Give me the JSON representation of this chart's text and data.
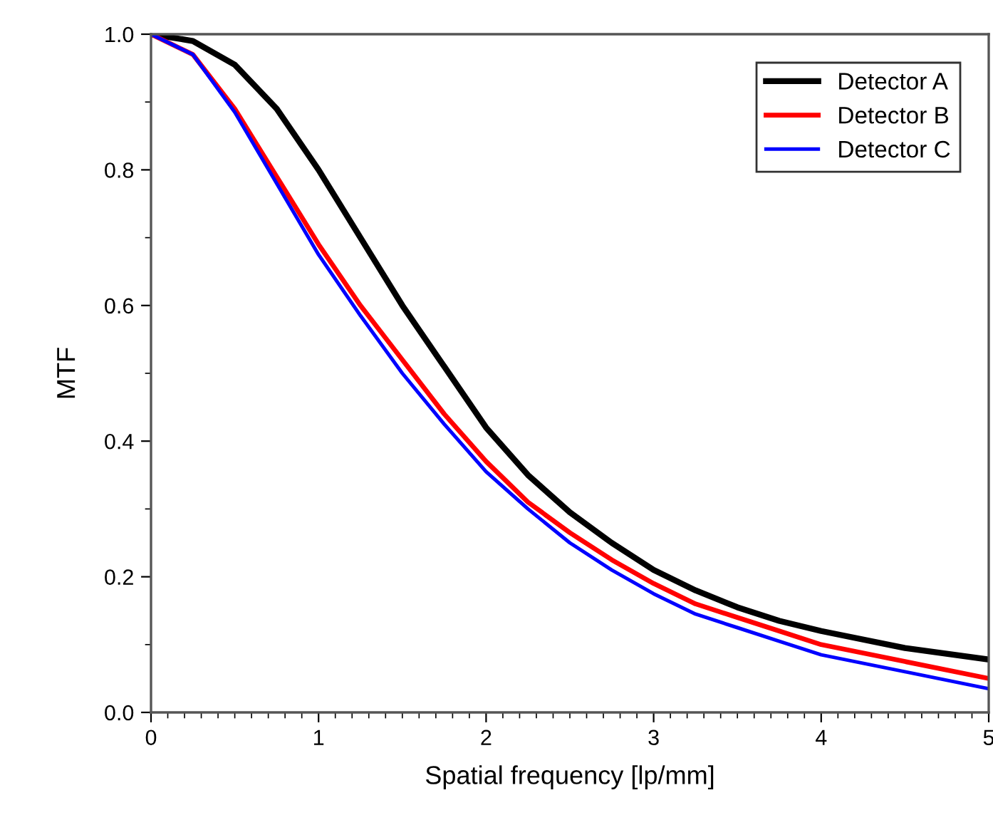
{
  "chart_data": {
    "type": "line",
    "xlabel": "Spatial frequency [lp/mm]",
    "ylabel": "MTF",
    "x": [
      0,
      0.25,
      0.5,
      0.75,
      1.0,
      1.25,
      1.5,
      1.75,
      2.0,
      2.25,
      2.5,
      2.75,
      3.0,
      3.25,
      3.5,
      3.75,
      4.0,
      4.5,
      5.0
    ],
    "series": [
      {
        "name": "Detector A",
        "color": "#000000",
        "values": [
          1.0,
          0.99,
          0.955,
          0.89,
          0.8,
          0.7,
          0.6,
          0.51,
          0.42,
          0.35,
          0.295,
          0.25,
          0.21,
          0.18,
          0.155,
          0.135,
          0.12,
          0.095,
          0.078
        ]
      },
      {
        "name": "Detector B",
        "color": "#ff0000",
        "values": [
          1.0,
          0.97,
          0.89,
          0.79,
          0.69,
          0.6,
          0.52,
          0.44,
          0.37,
          0.31,
          0.265,
          0.225,
          0.19,
          0.16,
          0.14,
          0.12,
          0.1,
          0.075,
          0.05
        ]
      },
      {
        "name": "Detector C",
        "color": "#0000ff",
        "values": [
          1.0,
          0.97,
          0.885,
          0.78,
          0.675,
          0.585,
          0.5,
          0.425,
          0.355,
          0.3,
          0.25,
          0.21,
          0.175,
          0.145,
          0.125,
          0.105,
          0.085,
          0.06,
          0.035
        ]
      }
    ],
    "xlim": [
      0,
      5
    ],
    "ylim": [
      0,
      1.0
    ],
    "xticks": [
      0,
      1,
      2,
      3,
      4,
      5
    ],
    "yticks": [
      {
        "value": 0,
        "label": "0.0"
      },
      0.2,
      0.4,
      0.6,
      0.8,
      {
        "value": 1.0,
        "label": "1.0"
      }
    ],
    "grid": false,
    "legend": "top right",
    "marker": "none",
    "line_style": "solid"
  }
}
